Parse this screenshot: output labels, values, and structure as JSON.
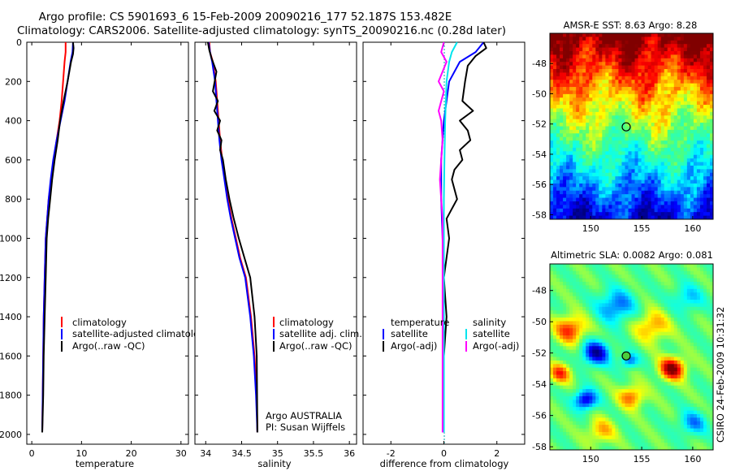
{
  "figure": {
    "title_line1": "Argo profile: CS 5901693_6 15-Feb-2009 20090216_177 52.187S 153.482E",
    "title_line2": "Climatology: CARS2006. Satellite-adjusted climatology: synTS_20090216.nc (0.28d later)",
    "footer_vertical": "CSIRO 24-Feb-2009 10:31:32"
  },
  "colors": {
    "climatology": "#ff0000",
    "satellite": "#0000ff",
    "argo": "#000000",
    "sal_satellite": "#00e5ee",
    "sal_argo": "#ff00ff"
  },
  "chart_data": [
    {
      "type": "line",
      "id": "temperature-panel",
      "xlabel": "temperature",
      "xlim": [
        -1,
        31.5
      ],
      "ylim": [
        2050,
        0
      ],
      "xticks": [
        0,
        10,
        20,
        30
      ],
      "yticks": [
        0,
        200,
        400,
        600,
        800,
        1000,
        1200,
        1400,
        1600,
        1800,
        2000
      ],
      "legend": [
        "climatology",
        "satellite-adjusted climatology",
        "Argo(..raw -QC)"
      ],
      "series": [
        {
          "name": "climatology",
          "color_key": "climatology",
          "x": [
            6.8,
            6.8,
            6.6,
            6.3,
            6.0,
            5.6,
            5.0,
            4.4,
            3.9,
            3.4,
            3.1,
            2.8,
            2.6,
            2.4,
            2.3,
            2.2,
            2.1
          ],
          "y": [
            0,
            50,
            100,
            200,
            300,
            400,
            500,
            600,
            700,
            800,
            900,
            1000,
            1200,
            1400,
            1600,
            1800,
            1990
          ]
        },
        {
          "name": "satellite-adjusted climatology",
          "color_key": "satellite",
          "x": [
            8.3,
            8.2,
            7.8,
            7.2,
            6.6,
            5.8,
            5.0,
            4.3,
            3.8,
            3.4,
            3.1,
            2.8,
            2.6,
            2.4,
            2.3,
            2.2,
            2.1
          ],
          "y": [
            0,
            50,
            100,
            200,
            300,
            400,
            500,
            600,
            700,
            800,
            900,
            1000,
            1200,
            1400,
            1600,
            1800,
            1990
          ]
        },
        {
          "name": "Argo(..raw -QC)",
          "color_key": "argo",
          "x": [
            8.3,
            8.4,
            8.3,
            7.9,
            7.2,
            6.4,
            5.7,
            5.2,
            4.6,
            4.1,
            3.7,
            3.3,
            3.0,
            2.8,
            2.6,
            2.4,
            2.3,
            2.2,
            2.1
          ],
          "y": [
            0,
            30,
            60,
            100,
            200,
            300,
            400,
            500,
            600,
            700,
            800,
            900,
            1000,
            1200,
            1400,
            1600,
            1800,
            1900,
            1990
          ]
        }
      ]
    },
    {
      "type": "line",
      "id": "salinity-panel",
      "xlabel": "salinity",
      "xlim": [
        33.85,
        36.1
      ],
      "ylim": [
        2050,
        0
      ],
      "xticks": [
        34,
        34.5,
        35,
        35.5,
        36
      ],
      "legend": [
        "climatology",
        "satellite adj. clim.",
        "Argo(..raw -QC)"
      ],
      "annotation": [
        "Argo AUSTRALIA",
        "PI: Susan Wijffels"
      ],
      "series": [
        {
          "name": "climatology",
          "color_key": "climatology",
          "x": [
            34.05,
            34.06,
            34.1,
            34.14,
            34.16,
            34.18,
            34.2,
            34.23,
            34.27,
            34.31,
            34.36,
            34.42,
            34.48,
            34.56,
            34.63,
            34.68,
            34.71,
            34.72
          ],
          "y": [
            0,
            50,
            100,
            200,
            300,
            400,
            500,
            600,
            700,
            800,
            900,
            1000,
            1100,
            1200,
            1400,
            1600,
            1800,
            1990
          ]
        },
        {
          "name": "satellite adj. clim.",
          "color_key": "satellite",
          "x": [
            34.04,
            34.06,
            34.09,
            34.13,
            34.15,
            34.17,
            34.19,
            34.22,
            34.26,
            34.3,
            34.35,
            34.41,
            34.47,
            34.55,
            34.62,
            34.67,
            34.7,
            34.72
          ],
          "y": [
            0,
            50,
            100,
            200,
            300,
            400,
            500,
            600,
            700,
            800,
            900,
            1000,
            1100,
            1200,
            1400,
            1600,
            1800,
            1990
          ]
        },
        {
          "name": "Argo(..raw -QC)",
          "color_key": "argo",
          "x": [
            34.03,
            34.05,
            34.08,
            34.15,
            34.1,
            34.17,
            34.12,
            34.2,
            34.16,
            34.22,
            34.2,
            34.24,
            34.28,
            34.33,
            34.39,
            34.46,
            34.54,
            34.62,
            34.68,
            34.71,
            34.72
          ],
          "y": [
            0,
            40,
            80,
            150,
            250,
            300,
            350,
            400,
            450,
            500,
            550,
            600,
            700,
            800,
            900,
            1000,
            1100,
            1200,
            1400,
            1600,
            1990
          ]
        }
      ]
    },
    {
      "type": "line",
      "id": "difference-panel",
      "xlabel": "difference from climatology",
      "xlim": [
        -3.05,
        3.05
      ],
      "ylim": [
        2050,
        0
      ],
      "xticks": [
        -2,
        0,
        2
      ],
      "legend_left": [
        "temperature",
        "satellite",
        "Argo(-adj)"
      ],
      "legend_right": [
        "salinity",
        "satellite",
        "Argo(-adj)"
      ],
      "series": [
        {
          "name": "temperature satellite",
          "color_key": "satellite",
          "x": [
            1.5,
            1.2,
            0.6,
            0.2,
            0.0,
            -0.1,
            -0.1,
            -0.05,
            0.0,
            0.0,
            0.0,
            0.0,
            0.0
          ],
          "y": [
            0,
            50,
            100,
            200,
            400,
            600,
            800,
            1000,
            1200,
            1400,
            1600,
            1800,
            1990
          ]
        },
        {
          "name": "temperature Argo(-adj)",
          "color_key": "argo",
          "x": [
            1.5,
            1.6,
            1.2,
            0.9,
            0.8,
            0.7,
            1.1,
            0.6,
            0.9,
            1.0,
            0.6,
            0.7,
            0.4,
            0.3,
            0.5,
            0.3,
            0.1,
            0.2,
            0.0,
            0.1,
            0.0,
            0.0
          ],
          "y": [
            0,
            30,
            70,
            120,
            200,
            300,
            350,
            400,
            450,
            500,
            550,
            600,
            650,
            700,
            800,
            850,
            900,
            1000,
            1200,
            1400,
            1600,
            1990
          ]
        },
        {
          "name": "salinity satellite",
          "color_key": "sal_satellite",
          "x": [
            0.5,
            0.3,
            0.2,
            0.1,
            0.05,
            0.02,
            0.0,
            0.0,
            0.0,
            0.0,
            0.0
          ],
          "y": [
            0,
            50,
            100,
            200,
            400,
            600,
            800,
            1000,
            1400,
            1800,
            1990
          ]
        },
        {
          "name": "salinity Argo(-adj)",
          "color_key": "sal_argo",
          "x": [
            0.0,
            -0.1,
            0.1,
            -0.2,
            0.0,
            -0.2,
            -0.1,
            -0.05,
            -0.1,
            -0.15,
            -0.1,
            -0.05,
            -0.05,
            -0.05,
            -0.05,
            -0.05
          ],
          "y": [
            0,
            50,
            100,
            200,
            250,
            350,
            400,
            500,
            600,
            700,
            800,
            900,
            1000,
            1400,
            1800,
            1990
          ]
        }
      ]
    },
    {
      "type": "heatmap",
      "id": "sst-map",
      "title": "AMSR-E SST: 8.63 Argo: 8.28",
      "xlim": [
        146,
        162
      ],
      "ylim": [
        -58.3,
        -46
      ],
      "xticks": [
        150,
        155,
        160
      ],
      "yticks": [
        -48,
        -50,
        -52,
        -54,
        -56,
        -58
      ],
      "marker": {
        "lon": 153.482,
        "lat": -52.187
      }
    },
    {
      "type": "heatmap",
      "id": "sla-map",
      "title": "Altimetric SLA: 0.0082 Argo: 0.081",
      "xlim": [
        146,
        162
      ],
      "ylim": [
        -58.2,
        -46.3
      ],
      "xticks": [
        150,
        155,
        160
      ],
      "yticks": [
        -48,
        -50,
        -52,
        -54,
        -56,
        -58
      ],
      "marker": {
        "lon": 153.482,
        "lat": -52.187
      }
    }
  ]
}
